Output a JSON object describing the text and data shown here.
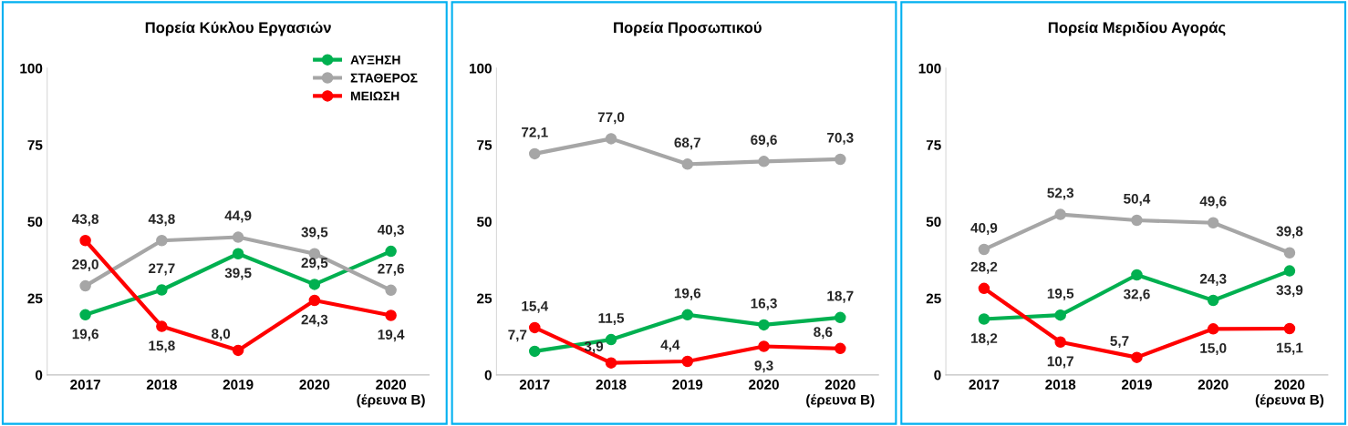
{
  "chart_data": [
    {
      "type": "line",
      "title": "Πορεία Κύκλου Εργασιών",
      "categories": [
        "2017",
        "2018",
        "2019",
        "2020",
        "2020\n(έρευνα Β)"
      ],
      "ylim": [
        0,
        100
      ],
      "yticks": [
        0,
        25,
        50,
        75,
        100
      ],
      "grid": false,
      "legend": "top right",
      "marker": "circle",
      "line_style": "solid",
      "series": [
        {
          "name": "ΑΥΞΗΣΗ",
          "color": "#00b050",
          "values": [
            19.6,
            27.7,
            39.5,
            29.5,
            40.3
          ],
          "value_labels": [
            "19,6",
            "27,7",
            "39,5",
            "29,5",
            "40,3"
          ]
        },
        {
          "name": "ΣΤΑΘΕΡΟΣ",
          "color": "#a6a6a6",
          "values": [
            29.0,
            43.8,
            44.9,
            39.5,
            27.6
          ],
          "value_labels": [
            "29,0",
            "43,8",
            "44,9",
            "39,5",
            "27,6"
          ]
        },
        {
          "name": "ΜΕΙΩΣΗ",
          "color": "#ff0000",
          "values": [
            43.8,
            15.8,
            8.0,
            24.3,
            19.4
          ],
          "value_labels": [
            "43,8",
            "15,8",
            "8,0",
            "24,3",
            "19,4"
          ]
        }
      ]
    },
    {
      "type": "line",
      "title": "Πορεία Προσωπικού",
      "categories": [
        "2017",
        "2018",
        "2019",
        "2020",
        "2020\n(έρευνα Β)"
      ],
      "ylim": [
        0,
        100
      ],
      "yticks": [
        0,
        25,
        50,
        75,
        100
      ],
      "grid": false,
      "marker": "circle",
      "line_style": "solid",
      "series": [
        {
          "color": "#00b050",
          "values": [
            7.7,
            11.5,
            19.6,
            16.3,
            18.7
          ],
          "value_labels": [
            "7,7",
            "11,5",
            "19,6",
            "16,3",
            "18,7"
          ]
        },
        {
          "color": "#a6a6a6",
          "values": [
            72.1,
            77.0,
            68.7,
            69.6,
            70.3
          ],
          "value_labels": [
            "72,1",
            "77,0",
            "68,7",
            "69,6",
            "70,3"
          ]
        },
        {
          "color": "#ff0000",
          "values": [
            15.4,
            3.9,
            4.4,
            9.3,
            8.6
          ],
          "value_labels": [
            "15,4",
            "3,9",
            "4,4",
            "9,3",
            "8,6"
          ]
        }
      ]
    },
    {
      "type": "line",
      "title": "Πορεία Μεριδίου Αγοράς",
      "categories": [
        "2017",
        "2018",
        "2019",
        "2020",
        "2020\n(έρευνα Β)"
      ],
      "ylim": [
        0,
        100
      ],
      "yticks": [
        0,
        25,
        50,
        75,
        100
      ],
      "grid": false,
      "marker": "circle",
      "line_style": "solid",
      "series": [
        {
          "color": "#00b050",
          "values": [
            18.2,
            19.5,
            32.6,
            24.3,
            33.9
          ],
          "value_labels": [
            "18,2",
            "19,5",
            "32,6",
            "24,3",
            "33,9"
          ]
        },
        {
          "color": "#a6a6a6",
          "values": [
            40.9,
            52.3,
            50.4,
            49.6,
            39.8
          ],
          "value_labels": [
            "40,9",
            "52,3",
            "50,4",
            "49,6",
            "39,8"
          ]
        },
        {
          "color": "#ff0000",
          "values": [
            28.2,
            10.7,
            5.7,
            15.0,
            15.1
          ],
          "value_labels": [
            "28,2",
            "10,7",
            "5,7",
            "15,0",
            "15,1"
          ]
        }
      ]
    }
  ]
}
